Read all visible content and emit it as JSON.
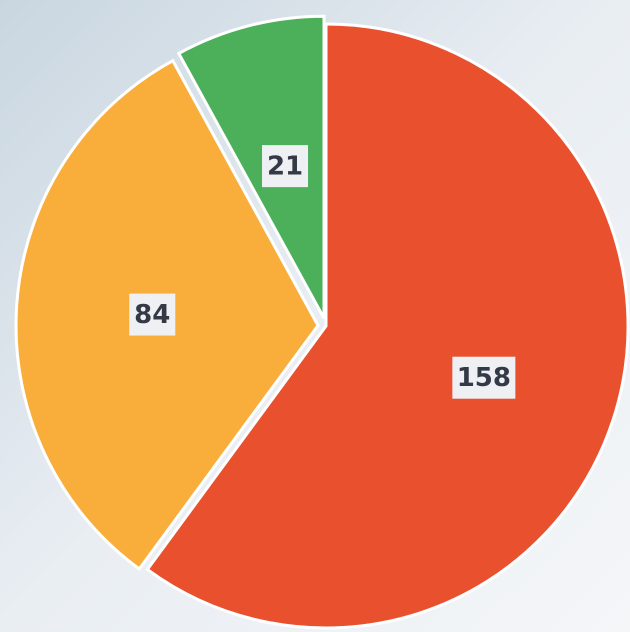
{
  "chart_data": {
    "type": "pie",
    "values": [
      158,
      84,
      21
    ],
    "colors": [
      "#e8502e",
      "#f9ad3a",
      "#4caf5a"
    ]
  }
}
